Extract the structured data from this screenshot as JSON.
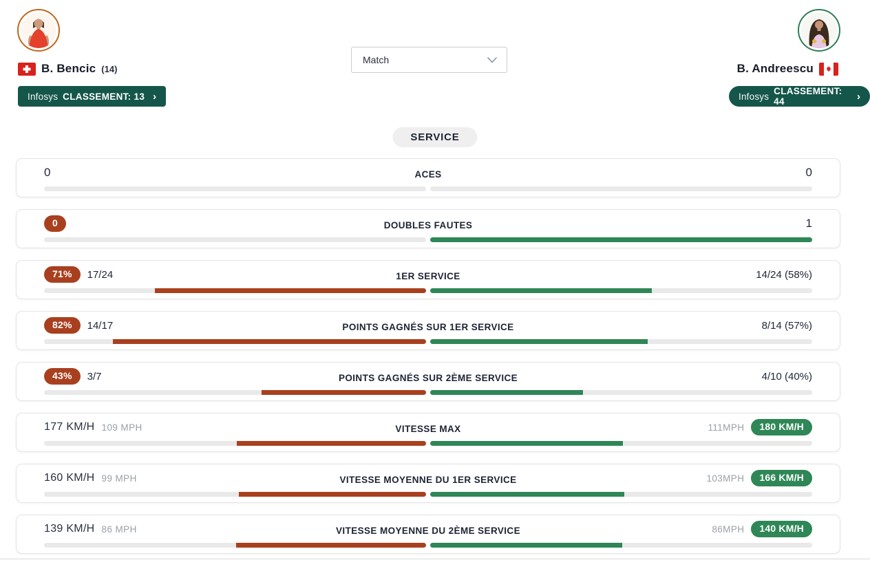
{
  "header": {
    "player_left": {
      "name": "B. Bencic",
      "seed": "(14)",
      "flag": "switzerland-flag",
      "ranking_brand": "Infosys",
      "ranking_text": "CLASSEMENT: 13",
      "chevron": "›"
    },
    "player_right": {
      "name": "B. Andreescu",
      "flag": "canada-flag",
      "ranking_brand": "Infosys",
      "ranking_text": "CLASSEMENT: 44",
      "chevron": "›"
    },
    "match_selector": {
      "value": "Match"
    }
  },
  "section": {
    "title": "SERVICE"
  },
  "colors": {
    "rust": "#a8401f",
    "green": "#2f8656",
    "badge_green": "#15564a",
    "track_gray": "#e9e9e9",
    "left_ring": "#bf671f",
    "right_ring": "#2e7d57"
  },
  "rows": [
    {
      "label": "ACES",
      "left": {
        "value": "0"
      },
      "right": {
        "value": "0"
      },
      "left_pct": 0,
      "right_pct": 0
    },
    {
      "label": "DOUBLES FAUTES",
      "left": {
        "badge": "0"
      },
      "right": {
        "value": "1"
      },
      "left_pct": 0,
      "right_pct": 100
    },
    {
      "label": "1ER SERVICE",
      "left": {
        "badge": "71%",
        "detail": "17/24"
      },
      "right": {
        "value": "14/24 (58%)"
      },
      "left_pct": 71,
      "right_pct": 58
    },
    {
      "label": "POINTS GAGNÉS SUR 1ER SERVICE",
      "left": {
        "badge": "82%",
        "detail": "14/17"
      },
      "right": {
        "value": "8/14 (57%)"
      },
      "left_pct": 82,
      "right_pct": 57
    },
    {
      "label": "POINTS GAGNÉS SUR 2ÈME SERVICE",
      "left": {
        "badge": "43%",
        "detail": "3/7"
      },
      "right": {
        "value": "4/10 (40%)"
      },
      "left_pct": 43,
      "right_pct": 40
    },
    {
      "label": "VITESSE MAX",
      "left": {
        "value": "177 KM/H",
        "detail": "109 MPH"
      },
      "right": {
        "detail": "111MPH",
        "badge": "180 KM/H"
      },
      "left_pct": 49.6,
      "right_pct": 50.4
    },
    {
      "label": "VITESSE MOYENNE DU 1ER SERVICE",
      "left": {
        "value": "160 KM/H",
        "detail": "99 MPH"
      },
      "right": {
        "detail": "103MPH",
        "badge": "166 KM/H"
      },
      "left_pct": 49.1,
      "right_pct": 50.9
    },
    {
      "label": "VITESSE MOYENNE DU 2ÈME SERVICE",
      "left": {
        "value": "139 KM/H",
        "detail": "86 MPH"
      },
      "right": {
        "detail": "86MPH",
        "badge": "140 KM/H"
      },
      "left_pct": 49.8,
      "right_pct": 50.2
    }
  ]
}
